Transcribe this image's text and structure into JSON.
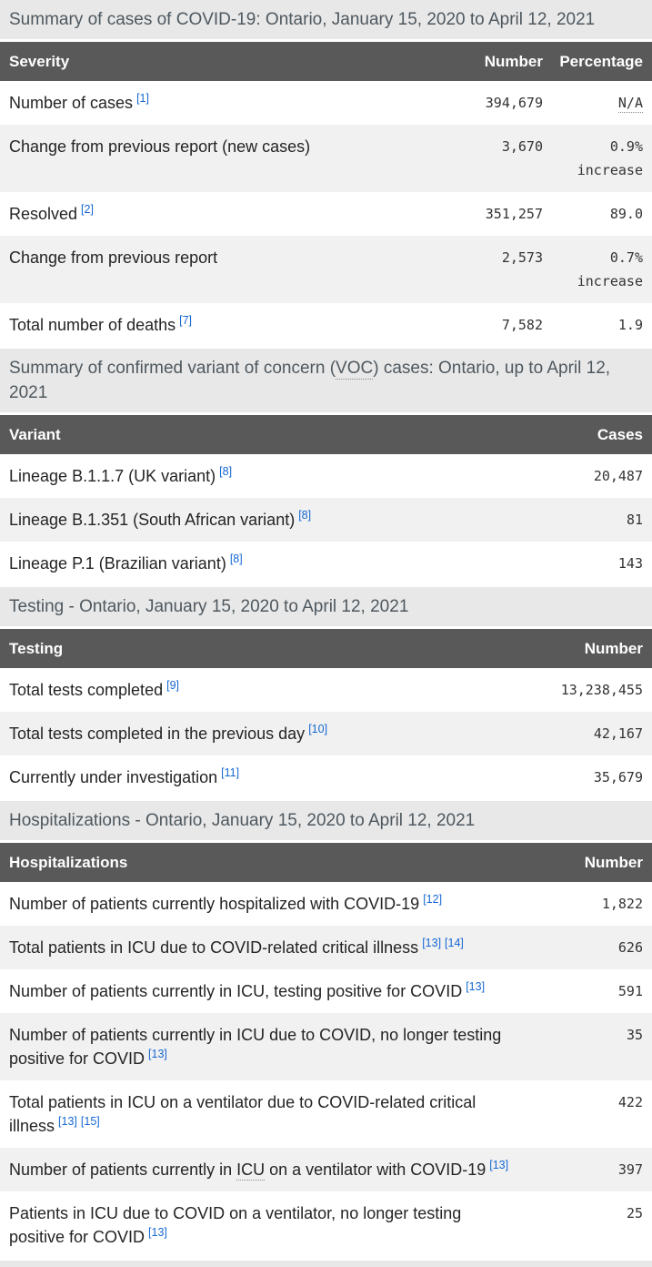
{
  "colors": {
    "link": "#1567d3",
    "header_bg": "#595959",
    "caption_bg": "#e8e8e8",
    "caption_text": "#4e585f",
    "stripe": "#f1f1f1"
  },
  "tables": [
    {
      "id": "cases-summary-table",
      "caption_parts": [
        {
          "text": "Summary of cases of COVID-19: Ontario, January 15, 2020 to April 12, 2021"
        }
      ],
      "columns": [
        "Severity",
        "Number",
        "Percentage"
      ],
      "rows": [
        {
          "parts": [
            {
              "text": "Number of cases"
            }
          ],
          "refs": [
            "[1]"
          ],
          "num": "394,679",
          "pct_lines": [
            {
              "text": "N/A",
              "abbr": true
            }
          ]
        },
        {
          "parts": [
            {
              "text": "Change from previous report (new cases)"
            }
          ],
          "refs": [],
          "num": "3,670",
          "pct_lines": [
            {
              "text": "0.9%"
            },
            {
              "text": "increase"
            }
          ]
        },
        {
          "parts": [
            {
              "text": "Resolved"
            }
          ],
          "refs": [
            "[2]"
          ],
          "num": "351,257",
          "pct_lines": [
            {
              "text": "89.0"
            }
          ]
        },
        {
          "parts": [
            {
              "text": "Change from previous report"
            }
          ],
          "refs": [],
          "num": "2,573",
          "pct_lines": [
            {
              "text": "0.7%"
            },
            {
              "text": "increase"
            }
          ]
        },
        {
          "parts": [
            {
              "text": "Total number of deaths"
            }
          ],
          "refs": [
            "[7]"
          ],
          "num": "7,582",
          "pct_lines": [
            {
              "text": "1.9"
            }
          ]
        }
      ]
    },
    {
      "id": "voc-table",
      "caption_parts": [
        {
          "text": "Summary of confirmed variant of concern ("
        },
        {
          "text": "VOC",
          "abbr": true
        },
        {
          "text": ") cases: Ontario, up to April 12, 2021"
        }
      ],
      "columns": [
        "Variant",
        "Cases"
      ],
      "rows": [
        {
          "parts": [
            {
              "text": "Lineage B.1.1.7 (UK variant)"
            }
          ],
          "refs": [
            "[8]"
          ],
          "num": "20,487"
        },
        {
          "parts": [
            {
              "text": "Lineage B.1.351 (South African variant)"
            }
          ],
          "refs": [
            "[8]"
          ],
          "num": "81"
        },
        {
          "parts": [
            {
              "text": "Lineage P.1 (Brazilian variant)"
            }
          ],
          "refs": [
            "[8]"
          ],
          "num": "143"
        }
      ]
    },
    {
      "id": "testing-table",
      "caption_parts": [
        {
          "text": "Testing - Ontario, January 15, 2020 to April 12, 2021"
        }
      ],
      "columns": [
        "Testing",
        "Number"
      ],
      "rows": [
        {
          "parts": [
            {
              "text": "Total tests completed"
            }
          ],
          "refs": [
            "[9]"
          ],
          "num": "13,238,455"
        },
        {
          "parts": [
            {
              "text": "Total tests completed in the previous day"
            }
          ],
          "refs": [
            "[10]"
          ],
          "num": "42,167"
        },
        {
          "parts": [
            {
              "text": "Currently under investigation"
            }
          ],
          "refs": [
            "[11]"
          ],
          "num": "35,679"
        }
      ]
    },
    {
      "id": "hospitalizations-table",
      "caption_parts": [
        {
          "text": "Hospitalizations - Ontario, January 15, 2020 to April 12, 2021"
        }
      ],
      "columns": [
        "Hospitalizations",
        "Number"
      ],
      "rows": [
        {
          "parts": [
            {
              "text": "Number of patients currently hospitalized with COVID-19"
            }
          ],
          "refs": [
            "[12]"
          ],
          "num": "1,822"
        },
        {
          "parts": [
            {
              "text": "Total patients in ICU due to COVID-related critical illness"
            }
          ],
          "refs": [
            "[13]",
            "[14]"
          ],
          "num": "626"
        },
        {
          "parts": [
            {
              "text": "Number of patients currently in ICU, testing positive for COVID"
            }
          ],
          "refs": [
            "[13]"
          ],
          "num": "591"
        },
        {
          "parts": [
            {
              "text": "Number of patients currently in ICU due to COVID, no longer testing positive for COVID"
            }
          ],
          "refs": [
            "[13]"
          ],
          "num": "35"
        },
        {
          "parts": [
            {
              "text": "Total patients in ICU on a ventilator due to COVID-related critical illness"
            }
          ],
          "refs": [
            "[13]",
            "[15]"
          ],
          "num": "422"
        },
        {
          "parts": [
            {
              "text": "Number of patients currently in "
            },
            {
              "text": "ICU",
              "abbr": true
            },
            {
              "text": " on a ventilator with COVID-19"
            }
          ],
          "refs": [
            "[13]"
          ],
          "num": "397"
        },
        {
          "parts": [
            {
              "text": "Patients in ICU due to COVID on a ventilator, no longer testing positive for COVID"
            }
          ],
          "refs": [
            "[13]"
          ],
          "num": "25"
        }
      ]
    }
  ]
}
